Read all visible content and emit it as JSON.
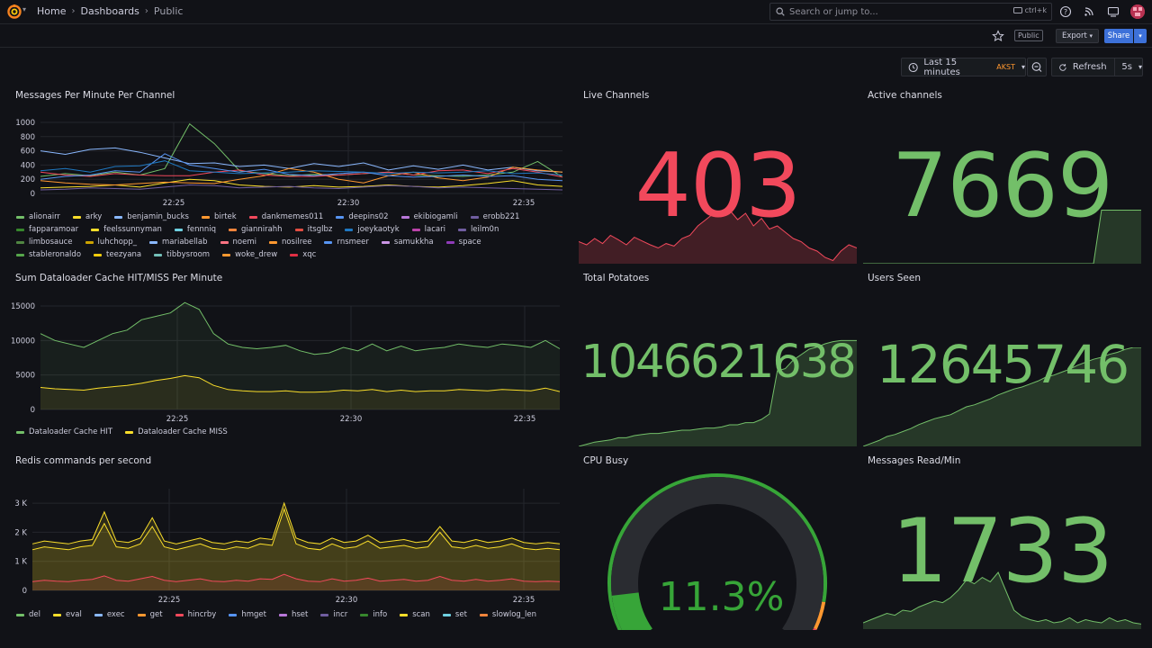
{
  "nav": {
    "breadcrumbs": [
      "Home",
      "Dashboards",
      "Public"
    ],
    "search_placeholder": "Search or jump to...",
    "search_shortcut": "ctrl+k"
  },
  "toolbar": {
    "tag": "Public",
    "export_label": "Export",
    "share_label": "Share",
    "time_range": "Last 15 minutes",
    "timezone": "AKST",
    "refresh_label": "Refresh",
    "refresh_interval": "5s"
  },
  "colors": {
    "green": "#73bf69",
    "red": "#f2495c",
    "yellow": "#fade2a",
    "orange": "#ff9830",
    "blue": "#5794f2",
    "gauge_green": "#37a538"
  },
  "panels": {
    "messages_per_minute": {
      "title": "Messages Per Minute Per Channel",
      "legend": [
        {
          "name": "alionairr",
          "color": "#73bf69"
        },
        {
          "name": "arky",
          "color": "#fade2a"
        },
        {
          "name": "benjamin_bucks",
          "color": "#8ab8ff"
        },
        {
          "name": "birtek",
          "color": "#ff9830"
        },
        {
          "name": "dankmemes011",
          "color": "#f2495c"
        },
        {
          "name": "deepins02",
          "color": "#5794f2"
        },
        {
          "name": "ekibiogamli",
          "color": "#b877d9"
        },
        {
          "name": "erobb221",
          "color": "#705da0"
        },
        {
          "name": "fapparamoar",
          "color": "#37872d"
        },
        {
          "name": "feelssunnyman",
          "color": "#fade2a"
        },
        {
          "name": "fennniq",
          "color": "#6ed0e0"
        },
        {
          "name": "giannirahh",
          "color": "#ef843c"
        },
        {
          "name": "itsglbz",
          "color": "#e24d42"
        },
        {
          "name": "joeykaotyk",
          "color": "#1f78c1"
        },
        {
          "name": "lacari",
          "color": "#ba43a9"
        },
        {
          "name": "leilm0n",
          "color": "#705da0"
        },
        {
          "name": "limbosauce",
          "color": "#508642"
        },
        {
          "name": "luhchopp_",
          "color": "#cca300"
        },
        {
          "name": "mariabellab",
          "color": "#8ab8ff"
        },
        {
          "name": "noemi",
          "color": "#ff7383"
        },
        {
          "name": "nosilree",
          "color": "#ff9830"
        },
        {
          "name": "rnsmeer",
          "color": "#5794f2"
        },
        {
          "name": "samukkha",
          "color": "#ca95e5"
        },
        {
          "name": "space",
          "color": "#8f3bb8"
        },
        {
          "name": "stableronaldo",
          "color": "#56a64b"
        },
        {
          "name": "teezyana",
          "color": "#f2cc0c"
        },
        {
          "name": "tibbysroom",
          "color": "#73bfb8"
        },
        {
          "name": "woke_drew",
          "color": "#ff9830"
        },
        {
          "name": "xqc",
          "color": "#e02f44"
        }
      ]
    },
    "cache_hit_miss": {
      "title": "Sum Dataloader Cache HIT/MISS Per Minute",
      "legend": [
        {
          "name": "Dataloader Cache HIT",
          "color": "#73bf69"
        },
        {
          "name": "Dataloader Cache MISS",
          "color": "#fade2a"
        }
      ]
    },
    "redis_commands": {
      "title": "Redis commands per second",
      "legend": [
        {
          "name": "del",
          "color": "#73bf69"
        },
        {
          "name": "eval",
          "color": "#fade2a"
        },
        {
          "name": "exec",
          "color": "#8ab8ff"
        },
        {
          "name": "get",
          "color": "#ff9830"
        },
        {
          "name": "hincrby",
          "color": "#f2495c"
        },
        {
          "name": "hmget",
          "color": "#5794f2"
        },
        {
          "name": "hset",
          "color": "#b877d9"
        },
        {
          "name": "incr",
          "color": "#705da0"
        },
        {
          "name": "info",
          "color": "#37872d"
        },
        {
          "name": "scan",
          "color": "#fade2a"
        },
        {
          "name": "set",
          "color": "#6ed0e0"
        },
        {
          "name": "slowlog_len",
          "color": "#ef843c"
        }
      ]
    },
    "live_channels": {
      "title": "Live Channels",
      "value": "403",
      "color": "#f2495c"
    },
    "active_channels": {
      "title": "Active channels",
      "value": "7669",
      "color": "#73bf69"
    },
    "total_potatoes": {
      "title": "Total Potatoes",
      "value": "1046621638",
      "color": "#73bf69"
    },
    "users_seen": {
      "title": "Users Seen",
      "value": "12645746",
      "color": "#73bf69"
    },
    "cpu_busy": {
      "title": "CPU Busy",
      "value": "11.3%",
      "percent": 11.3,
      "color": "#37a538"
    },
    "messages_read": {
      "title": "Messages Read/Min",
      "value": "1733",
      "color": "#73bf69"
    }
  },
  "chart_data": [
    {
      "type": "line",
      "title": "Messages Per Minute Per Channel",
      "x_ticks": [
        "22:25",
        "22:30",
        "22:35"
      ],
      "y_ticks": [
        "0",
        "200",
        "400",
        "600",
        "800",
        "1000"
      ],
      "ylim": [
        0,
        1000
      ],
      "series": [
        {
          "name": "alionairr",
          "values": [
            240,
            280,
            250,
            300,
            260,
            350,
            980,
            700,
            320,
            280,
            250,
            270,
            260,
            280,
            300,
            260,
            250,
            240,
            260,
            300,
            450,
            230
          ]
        },
        {
          "name": "arky",
          "values": [
            80,
            90,
            100,
            120,
            90,
            150,
            200,
            180,
            120,
            100,
            90,
            110,
            90,
            100,
            120,
            100,
            90,
            110,
            140,
            180,
            120,
            100
          ]
        },
        {
          "name": "benjamin_bucks",
          "values": [
            600,
            550,
            620,
            640,
            580,
            500,
            420,
            430,
            380,
            400,
            350,
            420,
            380,
            430,
            330,
            390,
            340,
            400,
            330,
            370,
            320,
            300
          ]
        },
        {
          "name": "birtek",
          "values": [
            180,
            150,
            130,
            120,
            140,
            160,
            150,
            140,
            200,
            250,
            350,
            300,
            200,
            150,
            250,
            300,
            220,
            180,
            230,
            370,
            330,
            300
          ]
        },
        {
          "name": "dankmemes011",
          "values": [
            300,
            260,
            240,
            280,
            260,
            250,
            250,
            300,
            330,
            260,
            240,
            240,
            260,
            280,
            300,
            260,
            320,
            330,
            280,
            350,
            300,
            230
          ]
        },
        {
          "name": "deepins02",
          "values": [
            200,
            240,
            260,
            320,
            300,
            560,
            400,
            350,
            300,
            340,
            270,
            250,
            280,
            300,
            250,
            230,
            240,
            260,
            240,
            250,
            200,
            180
          ]
        },
        {
          "name": "joeykaotyk",
          "values": [
            320,
            350,
            300,
            380,
            390,
            460,
            320,
            300,
            280,
            290,
            300,
            320,
            310,
            300,
            280,
            300,
            290,
            300,
            320,
            280,
            290,
            260
          ]
        },
        {
          "name": "erobb221",
          "values": [
            50,
            60,
            80,
            70,
            60,
            90,
            120,
            110,
            80,
            90,
            100,
            80,
            70,
            90,
            110,
            100,
            80,
            90,
            80,
            70,
            60,
            50
          ]
        }
      ]
    },
    {
      "type": "area",
      "title": "Sum Dataloader Cache HIT/MISS Per Minute",
      "x_ticks": [
        "22:25",
        "22:30",
        "22:35"
      ],
      "y_ticks": [
        "0",
        "5000",
        "10000",
        "15000"
      ],
      "ylim": [
        0,
        15000
      ],
      "series": [
        {
          "name": "Dataloader Cache HIT",
          "values": [
            11000,
            10000,
            9500,
            9000,
            10000,
            11000,
            11500,
            13000,
            13500,
            14000,
            15500,
            14500,
            11000,
            9500,
            9000,
            8800,
            9000,
            9300,
            8500,
            8000,
            8200,
            9000,
            8500,
            9500,
            8500,
            9200,
            8500,
            8800,
            9000,
            9500,
            9200,
            9000,
            9500,
            9300,
            9000,
            10000,
            8800
          ]
        },
        {
          "name": "Dataloader Cache MISS",
          "values": [
            3200,
            3000,
            2900,
            2800,
            3100,
            3300,
            3500,
            3800,
            4200,
            4500,
            4900,
            4600,
            3500,
            2900,
            2700,
            2600,
            2600,
            2700,
            2500,
            2500,
            2600,
            2800,
            2700,
            2900,
            2600,
            2800,
            2600,
            2700,
            2700,
            2900,
            2800,
            2700,
            2900,
            2800,
            2700,
            3100,
            2600
          ]
        }
      ]
    },
    {
      "type": "area",
      "title": "Redis commands per second",
      "x_ticks": [
        "22:25",
        "22:30",
        "22:35"
      ],
      "y_ticks": [
        "0",
        "1 K",
        "2 K",
        "3 K"
      ],
      "ylim": [
        0,
        3500
      ],
      "series": [
        {
          "name": "eval",
          "values": [
            1600,
            1700,
            1650,
            1600,
            1700,
            1750,
            2700,
            1700,
            1650,
            1800,
            2500,
            1700,
            1600,
            1700,
            1800,
            1650,
            1600,
            1700,
            1650,
            1800,
            1750,
            3000,
            1800,
            1650,
            1600,
            1800,
            1650,
            1700,
            1900,
            1650,
            1700,
            1750,
            1650,
            1700,
            2200,
            1700,
            1650,
            1750,
            1650,
            1700,
            1800,
            1650,
            1600,
            1650,
            1600
          ]
        },
        {
          "name": "scan",
          "values": [
            1400,
            1500,
            1450,
            1400,
            1500,
            1550,
            2300,
            1500,
            1450,
            1600,
            2200,
            1500,
            1400,
            1500,
            1600,
            1450,
            1400,
            1500,
            1450,
            1600,
            1550,
            2800,
            1600,
            1450,
            1400,
            1600,
            1450,
            1500,
            1700,
            1450,
            1500,
            1550,
            1450,
            1500,
            2000,
            1500,
            1450,
            1550,
            1450,
            1500,
            1600,
            1450,
            1400,
            1450,
            1400
          ]
        },
        {
          "name": "hincrby",
          "values": [
            300,
            350,
            320,
            300,
            350,
            380,
            500,
            350,
            320,
            400,
            480,
            350,
            300,
            350,
            400,
            320,
            300,
            350,
            320,
            400,
            380,
            550,
            400,
            320,
            300,
            400,
            320,
            350,
            420,
            320,
            350,
            380,
            320,
            350,
            480,
            350,
            320,
            380,
            320,
            350,
            400,
            320,
            300,
            320,
            300
          ]
        }
      ]
    }
  ]
}
